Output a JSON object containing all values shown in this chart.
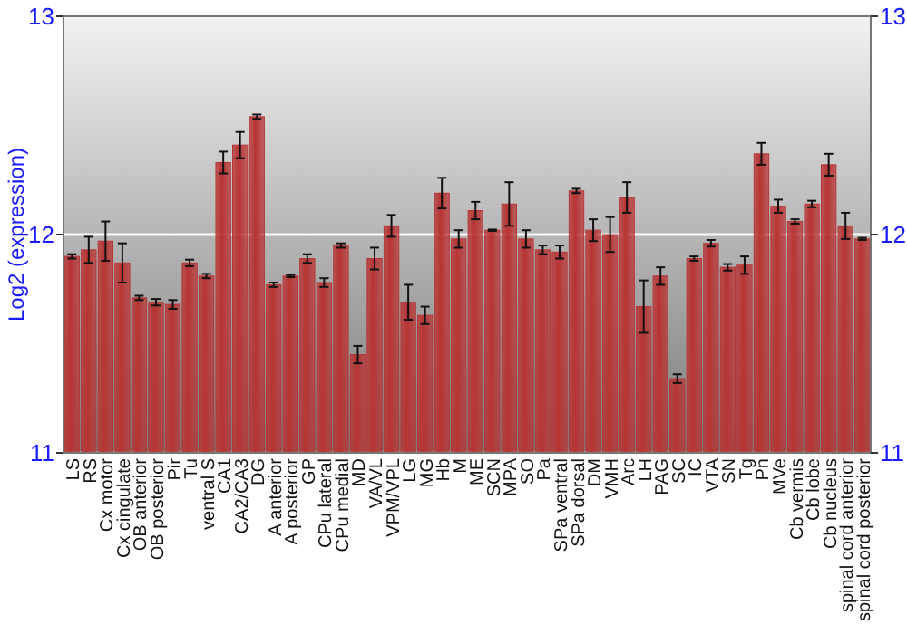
{
  "chart_data": {
    "type": "bar",
    "ylabel": "Log2 (expression)",
    "ylim": [
      11,
      13
    ],
    "yticks": [
      11,
      12,
      13
    ],
    "y2lim": [
      11,
      13
    ],
    "y2ticks": [
      11,
      12,
      13
    ],
    "grid": "y",
    "color": "#b83434",
    "categories": [
      "LS",
      "RS",
      "Cx motor",
      "Cx cingulate",
      "OB anterior",
      "OB posterior",
      "Pir",
      "Tu",
      "ventral S",
      "CA1",
      "CA2/CA3",
      "DG",
      "A anterior",
      "A posterior",
      "GP",
      "CPu lateral",
      "CPu medial",
      "MD",
      "VA/VL",
      "VPM/VPL",
      "LG",
      "MG",
      "Hb",
      "M",
      "ME",
      "SCN",
      "MPA",
      "SO",
      "Pa",
      "SPa ventral",
      "SPa dorsal",
      "DM",
      "VMH",
      "Arc",
      "LH",
      "PAG",
      "SC",
      "IC",
      "VTA",
      "SN",
      "Tg",
      "Pn",
      "MVe",
      "Cb vermis",
      "Cb lobe",
      "Cb nucleus",
      "spinal cord anterior",
      "spinal cord posterior"
    ],
    "values": [
      11.9,
      11.93,
      11.97,
      11.87,
      11.71,
      11.69,
      11.68,
      11.87,
      11.81,
      12.33,
      12.41,
      12.54,
      11.77,
      11.81,
      11.89,
      11.78,
      11.95,
      11.45,
      11.89,
      12.04,
      11.69,
      11.63,
      12.19,
      11.98,
      12.11,
      12.02,
      12.14,
      11.98,
      11.93,
      11.92,
      12.2,
      12.02,
      12.0,
      12.17,
      11.67,
      11.81,
      11.34,
      11.89,
      11.96,
      11.85,
      11.86,
      12.37,
      12.13,
      12.06,
      12.14,
      12.32,
      12.04,
      11.98
    ],
    "errors": [
      0.01,
      0.06,
      0.09,
      0.09,
      0.01,
      0.015,
      0.02,
      0.015,
      0.01,
      0.05,
      0.06,
      0.01,
      0.01,
      0.005,
      0.02,
      0.02,
      0.01,
      0.04,
      0.05,
      0.05,
      0.08,
      0.04,
      0.07,
      0.04,
      0.04,
      0.003,
      0.1,
      0.04,
      0.02,
      0.03,
      0.01,
      0.05,
      0.08,
      0.07,
      0.12,
      0.04,
      0.02,
      0.01,
      0.015,
      0.015,
      0.04,
      0.05,
      0.03,
      0.01,
      0.015,
      0.05,
      0.06,
      0.005
    ]
  }
}
